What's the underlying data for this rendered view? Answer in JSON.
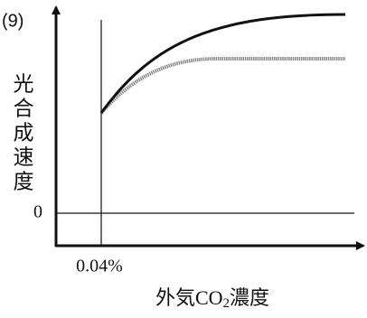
{
  "problem_number": "(9)",
  "y_axis_label": [
    "光",
    "合",
    "成",
    "速",
    "度"
  ],
  "zero_label": "0",
  "x_marker_label": "0.04%",
  "x_axis_label": [
    "外気CO",
    "2",
    "濃度"
  ]
}
